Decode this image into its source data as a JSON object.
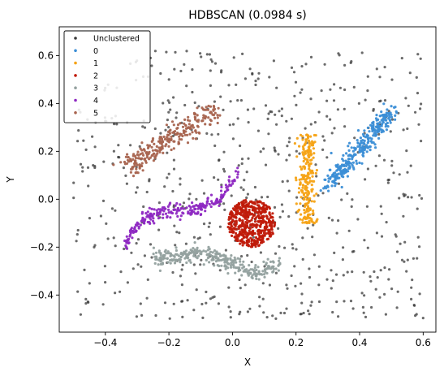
{
  "chart_data": {
    "type": "scatter",
    "title": "HDBSCAN (0.0984 s)",
    "xlabel": "X",
    "ylabel": "Y",
    "xlim": [
      -0.545,
      0.64
    ],
    "ylim": [
      -0.555,
      0.72
    ],
    "x_ticks": [
      -0.4,
      -0.2,
      0.0,
      0.2,
      0.4,
      0.6
    ],
    "x_tick_labels": [
      "−0.4",
      "−0.2",
      "0.0",
      "0.2",
      "0.4",
      "0.6"
    ],
    "y_ticks": [
      -0.4,
      -0.2,
      0.0,
      0.2,
      0.4,
      0.6
    ],
    "y_tick_labels": [
      "−0.4",
      "−0.2",
      "0.0",
      "0.2",
      "0.4",
      "0.6"
    ],
    "grid": false,
    "legend_position": "top-left",
    "series": [
      {
        "name": "Unclustered",
        "color": "#3a3a3a",
        "shape": "cloud",
        "count": 600,
        "x_range": [
          -0.5,
          0.6
        ],
        "y_range": [
          -0.5,
          0.62
        ]
      },
      {
        "name": "0",
        "color": "#3b8ed6",
        "shape": "line",
        "count": 300,
        "x_range": [
          0.3,
          0.5
        ],
        "y_range": [
          0.05,
          0.37
        ],
        "spread": 0.03
      },
      {
        "name": "1",
        "color": "#f5a316",
        "shape": "vertical-band",
        "count": 230,
        "x_center": 0.235,
        "y_range": [
          -0.1,
          0.27
        ],
        "spread": 0.014
      },
      {
        "name": "2",
        "color": "#c01a0a",
        "shape": "blob",
        "count": 500,
        "center": [
          0.06,
          -0.1
        ],
        "radius": [
          0.075,
          0.1
        ]
      },
      {
        "name": "3",
        "color": "#94a19f",
        "shape": "curve",
        "count": 300,
        "x_range": [
          -0.25,
          0.15
        ],
        "y_path": [
          [
            -0.25,
            -0.25
          ],
          [
            -0.1,
            -0.22
          ],
          [
            0.0,
            -0.27
          ],
          [
            0.07,
            -0.31
          ],
          [
            0.15,
            -0.27
          ]
        ],
        "spread": 0.02
      },
      {
        "name": "4",
        "color": "#8e29c2",
        "shape": "curve",
        "count": 240,
        "x_range": [
          -0.34,
          0.02
        ],
        "y_path": [
          [
            -0.34,
            -0.19
          ],
          [
            -0.28,
            -0.08
          ],
          [
            -0.2,
            -0.05
          ],
          [
            -0.1,
            -0.04
          ],
          [
            -0.04,
            0.0
          ],
          [
            0.02,
            0.11
          ]
        ],
        "spread": 0.015
      },
      {
        "name": "5",
        "color": "#a8644f",
        "shape": "line",
        "count": 260,
        "x_range": [
          -0.34,
          -0.05
        ],
        "y_range": [
          0.12,
          0.38
        ],
        "spread": 0.04
      }
    ]
  }
}
